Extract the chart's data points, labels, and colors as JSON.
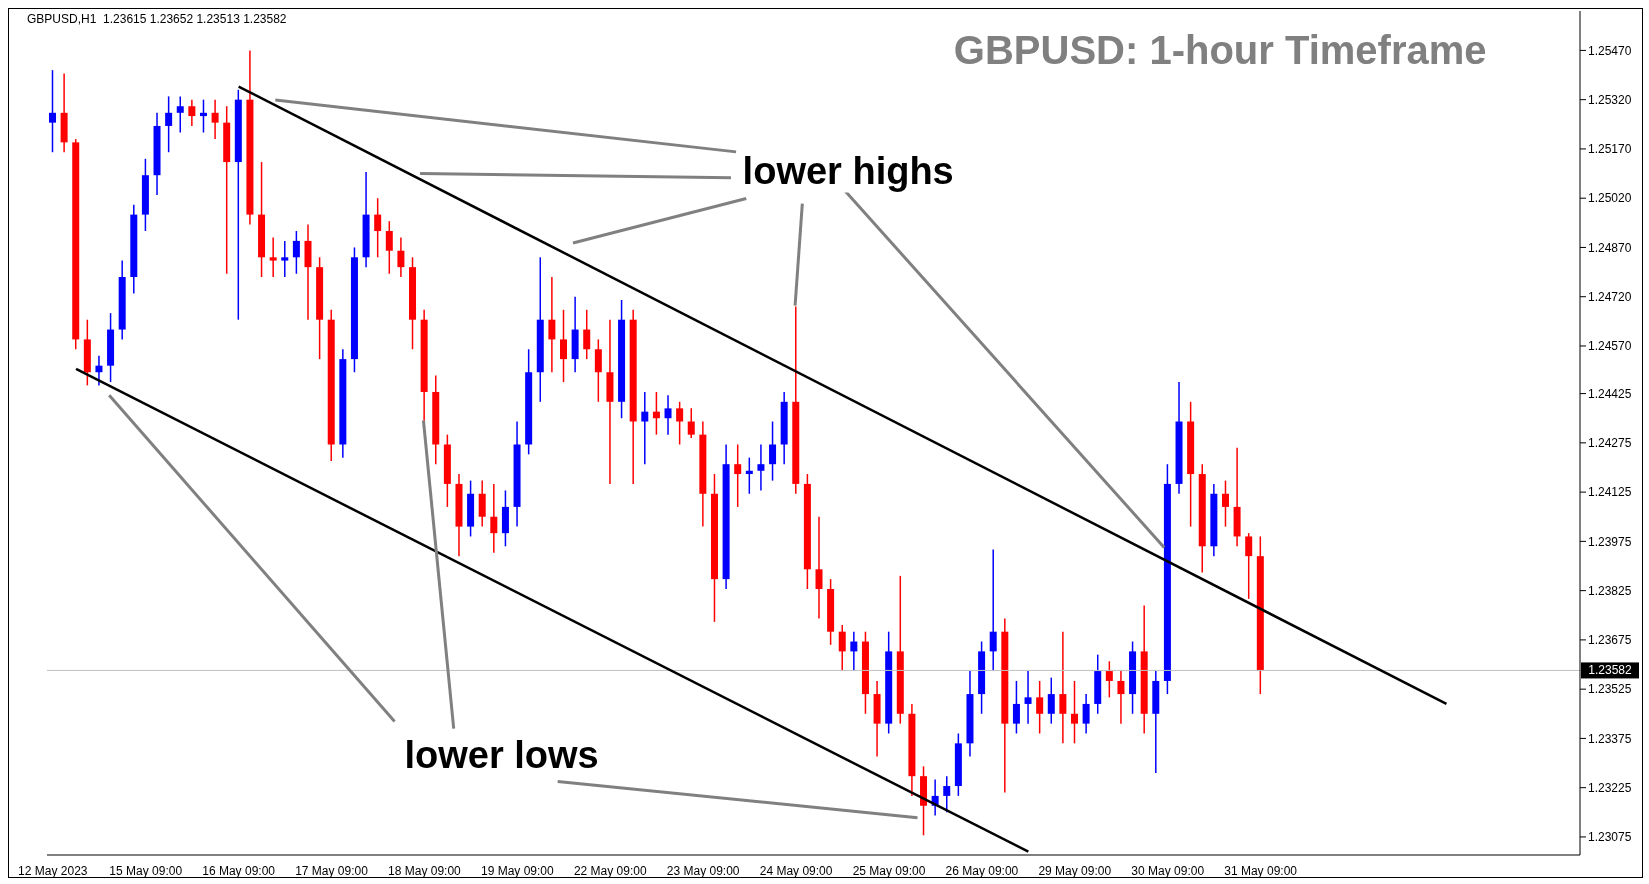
{
  "chart_data": {
    "type": "candlestick",
    "title": "GBPUSD: 1-hour Timeframe",
    "annotations": [
      "GBPUSD,H1  1.23615 1.23652 1.23513 1.23582",
      {
        "text": "lower highs",
        "x": "24 May 09:00",
        "y": 1.2469
      },
      {
        "text": "lower lows",
        "x": "18 May 09:00",
        "y": 1.2434
      }
    ],
    "categories": [
      "12 May 2023",
      null,
      null,
      null,
      null,
      null,
      null,
      null,
      "15 May 09:00",
      null,
      null,
      null,
      null,
      null,
      null,
      null,
      "16 May 09:00",
      null,
      null,
      null,
      null,
      null,
      null,
      null,
      "17 May 09:00",
      null,
      null,
      null,
      null,
      null,
      null,
      null,
      "18 May 09:00",
      null,
      null,
      null,
      null,
      null,
      null,
      null,
      "19 May 09:00",
      null,
      null,
      null,
      null,
      null,
      null,
      null,
      "22 May 09:00",
      null,
      null,
      null,
      null,
      null,
      null,
      null,
      "23 May 09:00",
      null,
      null,
      null,
      null,
      null,
      null,
      null,
      "24 May 09:00",
      null,
      null,
      null,
      null,
      null,
      null,
      null,
      "25 May 09:00",
      null,
      null,
      null,
      null,
      null,
      null,
      null,
      "26 May 09:00",
      null,
      null,
      null,
      null,
      null,
      null,
      null,
      "29 May 09:00",
      null,
      null,
      null,
      null,
      null,
      null,
      null,
      "30 May 09:00",
      null,
      null,
      null,
      null,
      null,
      null,
      null,
      "31 May 09:00",
      null,
      null,
      null,
      null,
      null,
      null,
      null,
      null,
      null,
      null,
      null,
      null,
      null,
      null,
      null,
      null,
      null,
      null,
      null,
      null,
      null,
      null,
      null,
      null,
      null,
      null,
      null
    ],
    "colors": [
      "#0000ff",
      "#ff0000",
      "#ff0000",
      "#ff0000",
      "#0000ff",
      "#0000ff",
      "#0000ff",
      "#0000ff",
      "#0000ff",
      "#0000ff",
      "#0000ff",
      "#0000ff",
      "#ff0000",
      "#0000ff",
      "#ff0000",
      "#ff0000",
      "#0000ff",
      "#ff0000",
      "#ff0000",
      "#ff0000",
      "#0000ff",
      "#0000ff",
      "#ff0000",
      "#ff0000",
      "#ff0000",
      "#0000ff",
      "#0000ff",
      "#0000ff",
      "#ff0000",
      "#ff0000",
      "#ff0000",
      "#ff0000",
      "#ff0000",
      "#ff0000",
      "#ff0000",
      "#ff0000",
      "#0000ff",
      "#ff0000",
      "#ff0000",
      "#0000ff",
      "#0000ff",
      "#0000ff",
      "#0000ff",
      "#ff0000",
      "#ff0000",
      "#0000ff",
      "#ff0000",
      "#ff0000",
      "#ff0000",
      "#0000ff",
      "#ff0000",
      "#0000ff",
      "#ff0000",
      "#0000ff",
      "#ff0000",
      "#ff0000",
      "#ff0000",
      "#ff0000",
      "#0000ff",
      "#ff0000",
      "#0000ff",
      "#0000ff",
      "#0000ff",
      "#0000ff",
      "#ff0000",
      "#ff0000",
      "#ff0000",
      "#ff0000",
      "#ff0000",
      "#0000ff",
      "#ff0000",
      "#ff0000",
      "#0000ff",
      "#ff0000",
      "#ff0000",
      "#ff0000",
      "#0000ff",
      "#0000ff",
      "#0000ff",
      "#0000ff",
      "#0000ff",
      "#0000ff",
      "#ff0000",
      "#0000ff",
      "#0000ff",
      "#ff0000",
      "#0000ff",
      "#ff0000",
      "#ff0000",
      "#0000ff",
      "#0000ff",
      "#ff0000",
      "#ff0000",
      "#0000ff",
      "#ff0000",
      "#0000ff",
      "#0000ff",
      "#0000ff",
      "#ff0000",
      "#ff0000",
      "#0000ff",
      "#ff0000",
      "#ff0000",
      "#ff0000",
      "#ff0000",
      null,
      null,
      null,
      null,
      null,
      null,
      null,
      null,
      null,
      null,
      null,
      null,
      null,
      null,
      null,
      null,
      null,
      null,
      null,
      null,
      null,
      null,
      null,
      null,
      null,
      null,
      null
    ],
    "ohlc": [
      [
        1.2525,
        1.2541,
        1.2516,
        1.2528
      ],
      [
        1.2528,
        1.254,
        1.2516,
        1.2519
      ],
      [
        1.2519,
        1.252,
        1.2456,
        1.2459
      ],
      [
        1.2459,
        1.2465,
        1.2445,
        1.2449
      ],
      [
        1.2449,
        1.2454,
        1.2445,
        1.2451
      ],
      [
        1.2451,
        1.2467,
        1.2446,
        1.2462
      ],
      [
        1.2462,
        1.2483,
        1.2459,
        1.2478
      ],
      [
        1.2478,
        1.25,
        1.2473,
        1.2497
      ],
      [
        1.2497,
        1.2514,
        1.2492,
        1.2509
      ],
      [
        1.2509,
        1.2528,
        1.2503,
        1.2524
      ],
      [
        1.2524,
        1.2533,
        1.2516,
        1.2528
      ],
      [
        1.2528,
        1.2533,
        1.2522,
        1.253
      ],
      [
        1.253,
        1.2532,
        1.2524,
        1.2527
      ],
      [
        1.2527,
        1.2532,
        1.2522,
        1.2528
      ],
      [
        1.2528,
        1.2532,
        1.252,
        1.2525
      ],
      [
        1.2525,
        1.253,
        1.2479,
        1.2513
      ],
      [
        1.2513,
        1.2535,
        1.2465,
        1.2532
      ],
      [
        1.2532,
        1.2547,
        1.2494,
        1.2497
      ],
      [
        1.2497,
        1.2513,
        1.2478,
        1.2484
      ],
      [
        1.2484,
        1.249,
        1.2478,
        1.2483
      ],
      [
        1.2483,
        1.2489,
        1.2478,
        1.2484
      ],
      [
        1.2484,
        1.2492,
        1.2479,
        1.2489
      ],
      [
        1.2489,
        1.2494,
        1.2465,
        1.2481
      ],
      [
        1.2481,
        1.2484,
        1.2453,
        1.2465
      ],
      [
        1.2465,
        1.2468,
        1.2422,
        1.2427
      ],
      [
        1.2427,
        1.2456,
        1.2423,
        1.2453
      ],
      [
        1.2453,
        1.2487,
        1.2449,
        1.2484
      ],
      [
        1.2484,
        1.251,
        1.2481,
        1.2497
      ],
      [
        1.2497,
        1.2502,
        1.2484,
        1.2492
      ],
      [
        1.2492,
        1.2495,
        1.2479,
        1.2486
      ],
      [
        1.2486,
        1.249,
        1.2478,
        1.2481
      ],
      [
        1.2481,
        1.2484,
        1.2456,
        1.2465
      ],
      [
        1.2465,
        1.2468,
        1.2434,
        1.2443
      ],
      [
        1.2443,
        1.2448,
        1.2421,
        1.2427
      ],
      [
        1.2427,
        1.243,
        1.2408,
        1.2415
      ],
      [
        1.2415,
        1.2418,
        1.2393,
        1.2402
      ],
      [
        1.2402,
        1.2416,
        1.2399,
        1.2412
      ],
      [
        1.2412,
        1.2416,
        1.2402,
        1.2405
      ],
      [
        1.2405,
        1.2415,
        1.2394,
        1.24
      ],
      [
        1.24,
        1.2413,
        1.2396,
        1.2408
      ],
      [
        1.2408,
        1.2434,
        1.2402,
        1.2427
      ],
      [
        1.2427,
        1.2456,
        1.2424,
        1.2449
      ],
      [
        1.2449,
        1.2484,
        1.244,
        1.2465
      ],
      [
        1.2465,
        1.2478,
        1.2449,
        1.2459
      ],
      [
        1.2459,
        1.2468,
        1.2446,
        1.2453
      ],
      [
        1.2453,
        1.2472,
        1.2449,
        1.2462
      ],
      [
        1.2462,
        1.2468,
        1.2453,
        1.2456
      ],
      [
        1.2456,
        1.2459,
        1.244,
        1.2449
      ],
      [
        1.2449,
        1.2465,
        1.2415,
        1.244
      ],
      [
        1.244,
        1.2471,
        1.2435,
        1.2465
      ],
      [
        1.2465,
        1.2468,
        1.2415,
        1.2434
      ],
      [
        1.2434,
        1.2443,
        1.2421,
        1.2437
      ],
      [
        1.2437,
        1.2443,
        1.243,
        1.2435
      ],
      [
        1.2435,
        1.2442,
        1.243,
        1.2438
      ],
      [
        1.2438,
        1.244,
        1.2427,
        1.2434
      ],
      [
        1.2434,
        1.2438,
        1.2429,
        1.243
      ],
      [
        1.243,
        1.2434,
        1.2402,
        1.2412
      ],
      [
        1.2412,
        1.2418,
        1.2373,
        1.2386
      ],
      [
        1.2386,
        1.2427,
        1.2383,
        1.2421
      ],
      [
        1.2421,
        1.2427,
        1.2408,
        1.2418
      ],
      [
        1.2418,
        1.2423,
        1.2412,
        1.2419
      ],
      [
        1.2419,
        1.2427,
        1.2413,
        1.2421
      ],
      [
        1.2421,
        1.2434,
        1.2416,
        1.2427
      ],
      [
        1.2427,
        1.2443,
        1.2421,
        1.244
      ],
      [
        1.244,
        1.2469,
        1.2412,
        1.2415
      ],
      [
        1.2415,
        1.2418,
        1.2383,
        1.2389
      ],
      [
        1.2389,
        1.2405,
        1.2374,
        1.2383
      ],
      [
        1.2383,
        1.2386,
        1.2366,
        1.237
      ],
      [
        1.237,
        1.2372,
        1.2358,
        1.2364
      ],
      [
        1.2364,
        1.237,
        1.2358,
        1.2367
      ],
      [
        1.2367,
        1.237,
        1.2345,
        1.2351
      ],
      [
        1.2351,
        1.2355,
        1.2332,
        1.2342
      ],
      [
        1.2342,
        1.237,
        1.2339,
        1.2364
      ],
      [
        1.2364,
        1.2387,
        1.2342,
        1.2345
      ],
      [
        1.2345,
        1.2348,
        1.232,
        1.2326
      ],
      [
        1.2326,
        1.2329,
        1.2308,
        1.2317
      ],
      [
        1.2317,
        1.2325,
        1.2314,
        1.232
      ],
      [
        1.232,
        1.2326,
        1.2315,
        1.2323
      ],
      [
        1.2323,
        1.2339,
        1.232,
        1.2336
      ],
      [
        1.2336,
        1.2358,
        1.2332,
        1.2351
      ],
      [
        1.2351,
        1.2367,
        1.2345,
        1.2364
      ],
      [
        1.2364,
        1.2395,
        1.2358,
        1.237
      ],
      [
        1.237,
        1.2374,
        1.2321,
        1.2342
      ],
      [
        1.2342,
        1.2355,
        1.2339,
        1.2348
      ],
      [
        1.2348,
        1.2358,
        1.2342,
        1.235
      ],
      [
        1.235,
        1.2355,
        1.2339,
        1.2345
      ],
      [
        1.2345,
        1.2356,
        1.2342,
        1.2351
      ],
      [
        1.2351,
        1.237,
        1.2336,
        1.2345
      ],
      [
        1.2345,
        1.2355,
        1.2336,
        1.2342
      ],
      [
        1.2342,
        1.2351,
        1.2339,
        1.2348
      ],
      [
        1.2348,
        1.2363,
        1.2345,
        1.2358
      ],
      [
        1.2358,
        1.2361,
        1.235,
        1.2355
      ],
      [
        1.2355,
        1.2358,
        1.2342,
        1.2351
      ],
      [
        1.2351,
        1.2367,
        1.2345,
        1.2364
      ],
      [
        1.2364,
        1.2378,
        1.2339,
        1.2345
      ],
      [
        1.2345,
        1.2358,
        1.2327,
        1.2355
      ],
      [
        1.2355,
        1.2421,
        1.2351,
        1.2415
      ],
      [
        1.2415,
        1.2446,
        1.2412,
        1.2434
      ],
      [
        1.2434,
        1.244,
        1.2402,
        1.2418
      ],
      [
        1.2418,
        1.2421,
        1.2388,
        1.2396
      ],
      [
        1.2396,
        1.2415,
        1.2393,
        1.2412
      ],
      [
        1.2412,
        1.2416,
        1.2402,
        1.2408
      ],
      [
        1.2408,
        1.2426,
        1.2396,
        1.2399
      ],
      [
        1.2399,
        1.24,
        1.238,
        1.2393
      ],
      [
        1.2393,
        1.2399,
        1.2351,
        1.23582
      ],
      null,
      null,
      null,
      null,
      null,
      null,
      null,
      null,
      null,
      null,
      null,
      null,
      null,
      null,
      null,
      null,
      null,
      null,
      null,
      null,
      null,
      null,
      null,
      null,
      null,
      null,
      null
    ],
    "series": [
      {
        "type": "line",
        "color": "#000000",
        "values": [
          null,
          null,
          null,
          null,
          null,
          null,
          null,
          null,
          null,
          null,
          null,
          null,
          null,
          null,
          null,
          null,
          1.2536,
          null,
          null,
          null,
          null,
          null,
          null,
          null,
          null,
          null,
          null,
          null,
          null,
          null,
          null,
          null,
          null,
          null,
          null,
          null,
          null,
          null,
          null,
          null,
          null,
          null,
          null,
          null,
          null,
          null,
          null,
          null,
          null,
          null,
          null,
          null,
          null,
          null,
          null,
          null,
          null,
          null,
          null,
          null,
          null,
          null,
          null,
          null,
          null,
          null,
          null,
          null,
          null,
          null,
          null,
          null,
          null,
          null,
          null,
          null,
          null,
          null,
          null,
          null,
          null,
          null,
          null,
          null,
          null,
          null,
          null,
          null,
          null,
          null,
          null,
          null,
          null,
          null,
          null,
          null,
          null,
          null,
          null,
          null,
          null,
          null,
          null,
          null,
          null,
          null,
          null,
          null,
          null,
          null,
          null,
          null,
          null,
          null,
          null,
          null,
          null,
          null,
          null,
          null,
          1.2348,
          null,
          null,
          null,
          null,
          null,
          null,
          null,
          null,
          null,
          null,
          null
        ]
      },
      {
        "type": "line",
        "color": "#000000",
        "values": [
          null,
          null,
          1.245,
          null,
          null,
          null,
          null,
          null,
          null,
          null,
          null,
          null,
          null,
          null,
          null,
          null,
          null,
          null,
          null,
          null,
          null,
          null,
          null,
          null,
          null,
          null,
          null,
          null,
          null,
          null,
          null,
          null,
          null,
          null,
          null,
          null,
          null,
          null,
          null,
          null,
          null,
          null,
          null,
          null,
          null,
          null,
          null,
          null,
          null,
          null,
          null,
          null,
          null,
          null,
          null,
          null,
          null,
          null,
          null,
          null,
          null,
          null,
          null,
          null,
          null,
          null,
          null,
          null,
          null,
          null,
          null,
          null,
          null,
          null,
          null,
          null,
          null,
          null,
          null,
          null,
          null,
          null,
          null,
          null,
          1.2303,
          null,
          null,
          null,
          null,
          null,
          null,
          null,
          null,
          null,
          null,
          null,
          null,
          null,
          null,
          null,
          null,
          null,
          null,
          null,
          null,
          null,
          null,
          null,
          null,
          null,
          null,
          null,
          null,
          null,
          null,
          null,
          null,
          null,
          null,
          null,
          null,
          null,
          null,
          null,
          null,
          null,
          null,
          null,
          null,
          null,
          null,
          null
        ]
      }
    ],
    "ylim": [
      1.2302,
      1.2559
    ],
    "yticks": [
      {
        "value": 1.2547,
        "label": "1.25470"
      },
      {
        "value": 1.2532,
        "label": "1.25320"
      },
      {
        "value": 1.2517,
        "label": "1.25170"
      },
      {
        "value": 1.2502,
        "label": "1.25020"
      },
      {
        "value": 1.2487,
        "label": "1.24870"
      },
      {
        "value": 1.2472,
        "label": "1.24720"
      },
      {
        "value": 1.2457,
        "label": "1.24570"
      },
      {
        "value": 1.24425,
        "label": "1.24425"
      },
      {
        "value": 1.24275,
        "label": "1.24275"
      },
      {
        "value": 1.24125,
        "label": "1.24125"
      },
      {
        "value": 1.23975,
        "label": "1.23975"
      },
      {
        "value": 1.23825,
        "label": "1.23825"
      },
      {
        "value": 1.23675,
        "label": "1.23675"
      },
      {
        "value": 1.23525,
        "label": "1.23525"
      },
      {
        "value": 1.23375,
        "label": "1.23375"
      },
      {
        "value": 1.23225,
        "label": "1.23225"
      },
      {
        "value": 1.23075,
        "label": "1.23075"
      }
    ],
    "ref_lines": [
      {
        "axis": "y",
        "value": 1.23582,
        "label": "1.23582",
        "color": "#c0c0c0"
      }
    ],
    "grid": false,
    "legend": false
  }
}
